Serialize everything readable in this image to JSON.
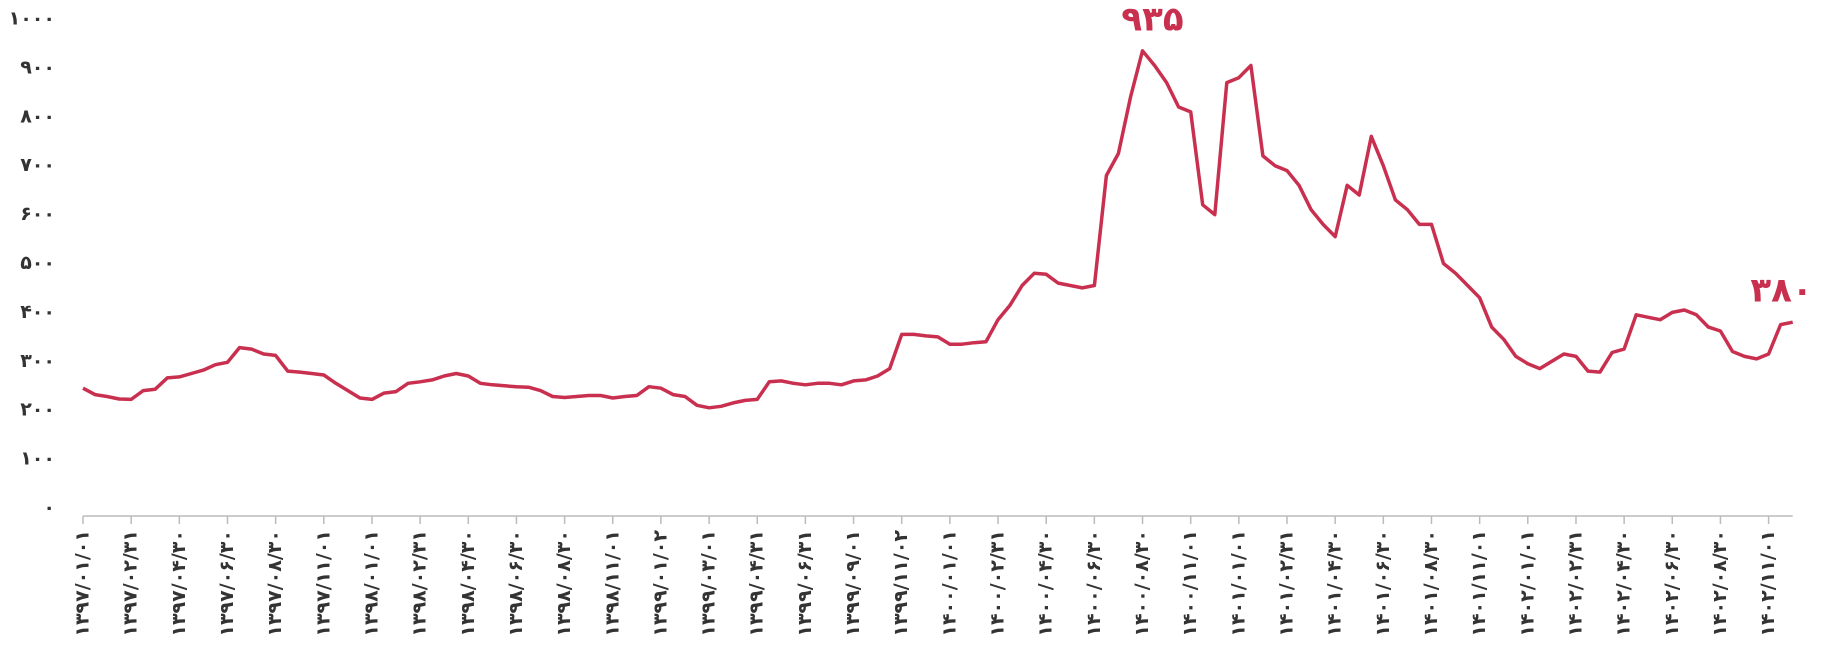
{
  "chart_data": {
    "type": "line",
    "color": "#c9304f",
    "ylim": [
      0,
      1000
    ],
    "yticks": [
      {
        "value": 0,
        "label": "۰"
      },
      {
        "value": 100,
        "label": "۱۰۰"
      },
      {
        "value": 200,
        "label": "۲۰۰"
      },
      {
        "value": 300,
        "label": "۳۰۰"
      },
      {
        "value": 400,
        "label": "۴۰۰"
      },
      {
        "value": 500,
        "label": "۵۰۰"
      },
      {
        "value": 600,
        "label": "۶۰۰"
      },
      {
        "value": 700,
        "label": "۷۰۰"
      },
      {
        "value": 800,
        "label": "۸۰۰"
      },
      {
        "value": 900,
        "label": "۹۰۰"
      },
      {
        "value": 1000,
        "label": "۱۰۰۰"
      }
    ],
    "categories": [
      "۱۳۹۷/۰۱/۰۱",
      null,
      null,
      null,
      "۱۳۹۷/۰۲/۳۱",
      null,
      null,
      null,
      "۱۳۹۷/۰۴/۳۰",
      null,
      null,
      null,
      "۱۳۹۷/۰۶/۳۰",
      null,
      null,
      null,
      "۱۳۹۷/۰۸/۳۰",
      null,
      null,
      null,
      "۱۳۹۷/۱۱/۰۱",
      null,
      null,
      null,
      "۱۳۹۸/۰۱/۰۱",
      null,
      null,
      null,
      "۱۳۹۸/۰۲/۳۱",
      null,
      null,
      null,
      "۱۳۹۸/۰۴/۳۰",
      null,
      null,
      null,
      "۱۳۹۸/۰۶/۳۰",
      null,
      null,
      null,
      "۱۳۹۸/۰۸/۳۰",
      null,
      null,
      null,
      "۱۳۹۸/۱۱/۰۱",
      null,
      null,
      null,
      "۱۳۹۹/۰۱/۰۲",
      null,
      null,
      null,
      "۱۳۹۹/۰۳/۰۱",
      null,
      null,
      null,
      "۱۳۹۹/۰۴/۳۱",
      null,
      null,
      null,
      "۱۳۹۹/۰۶/۳۱",
      null,
      null,
      null,
      "۱۳۹۹/۰۹/۰۱",
      null,
      null,
      null,
      "۱۳۹۹/۱۱/۰۲",
      null,
      null,
      null,
      "۱۴۰۰/۰۱/۰۱",
      null,
      null,
      null,
      "۱۴۰۰/۰۲/۳۱",
      null,
      null,
      null,
      "۱۴۰۰/۰۴/۳۰",
      null,
      null,
      null,
      "۱۴۰۰/۰۶/۳۰",
      null,
      null,
      null,
      "۱۴۰۰/۰۸/۳۰",
      null,
      null,
      null,
      "۱۴۰۰/۱۱/۰۱",
      null,
      null,
      null,
      "۱۴۰۱/۰۱/۰۱",
      null,
      null,
      null,
      "۱۴۰۱/۰۲/۳۱",
      null,
      null,
      null,
      "۱۴۰۱/۰۴/۳۰",
      null,
      null,
      null,
      "۱۴۰۱/۰۶/۳۰",
      null,
      null,
      null,
      "۱۴۰۱/۰۸/۳۰",
      null,
      null,
      null,
      "۱۴۰۱/۱۱/۰۱",
      null,
      null,
      null,
      "۱۴۰۲/۰۱/۰۱",
      null,
      null,
      null,
      "۱۴۰۲/۰۲/۳۱",
      null,
      null,
      null,
      "۱۴۰۲/۰۴/۳۰",
      null,
      null,
      null,
      "۱۴۰۲/۰۶/۳۰",
      null,
      null,
      null,
      "۱۴۰۲/۰۸/۳۰",
      null,
      null,
      null,
      "۱۴۰۲/۱۱/۰۱",
      null,
      null
    ],
    "values": [
      245,
      232,
      228,
      223,
      222,
      240,
      243,
      266,
      268,
      275,
      282,
      293,
      298,
      328,
      325,
      315,
      312,
      280,
      278,
      275,
      272,
      255,
      240,
      225,
      222,
      235,
      238,
      255,
      258,
      262,
      270,
      275,
      270,
      255,
      252,
      250,
      248,
      247,
      240,
      228,
      226,
      228,
      230,
      230,
      225,
      228,
      230,
      248,
      245,
      232,
      228,
      210,
      205,
      208,
      215,
      220,
      222,
      258,
      260,
      255,
      252,
      255,
      255,
      252,
      260,
      262,
      270,
      285,
      355,
      355,
      352,
      350,
      335,
      335,
      338,
      340,
      385,
      415,
      455,
      480,
      478,
      460,
      455,
      450,
      455,
      680,
      725,
      840,
      935,
      905,
      870,
      820,
      810,
      620,
      600,
      870,
      880,
      905,
      720,
      700,
      690,
      660,
      610,
      580,
      555,
      660,
      640,
      760,
      700,
      630,
      610,
      580,
      580,
      500,
      480,
      455,
      430,
      370,
      345,
      310,
      295,
      285,
      300,
      315,
      310,
      280,
      278,
      318,
      325,
      395,
      390,
      385,
      400,
      405,
      395,
      370,
      362,
      320,
      310,
      305,
      315,
      375,
      380
    ],
    "value_labels": [
      null,
      null,
      null,
      null,
      null,
      null,
      null,
      null,
      null,
      null,
      null,
      null,
      null,
      null,
      null,
      null,
      null,
      null,
      null,
      null,
      null,
      null,
      null,
      null,
      null,
      null,
      null,
      null,
      null,
      null,
      null,
      null,
      null,
      null,
      null,
      null,
      null,
      null,
      null,
      null,
      null,
      null,
      null,
      null,
      null,
      null,
      null,
      null,
      null,
      null,
      null,
      null,
      null,
      null,
      null,
      null,
      null,
      null,
      null,
      null,
      null,
      null,
      null,
      null,
      null,
      null,
      null,
      null,
      null,
      null,
      null,
      null,
      null,
      null,
      null,
      null,
      null,
      null,
      null,
      null,
      null,
      null,
      null,
      null,
      null,
      null,
      null,
      null,
      "۹۳۵",
      null,
      null,
      null,
      null,
      null,
      null,
      null,
      null,
      null,
      null,
      null,
      null,
      null,
      null,
      null,
      null,
      null,
      null,
      null,
      null,
      null,
      null,
      null,
      null,
      null,
      null,
      null,
      null,
      null,
      null,
      null,
      null,
      null,
      null,
      null,
      null,
      null,
      null,
      null,
      null,
      null,
      null,
      null,
      null,
      null,
      null,
      null,
      null,
      null,
      null,
      null,
      null,
      null,
      "۳۸۰"
    ]
  }
}
